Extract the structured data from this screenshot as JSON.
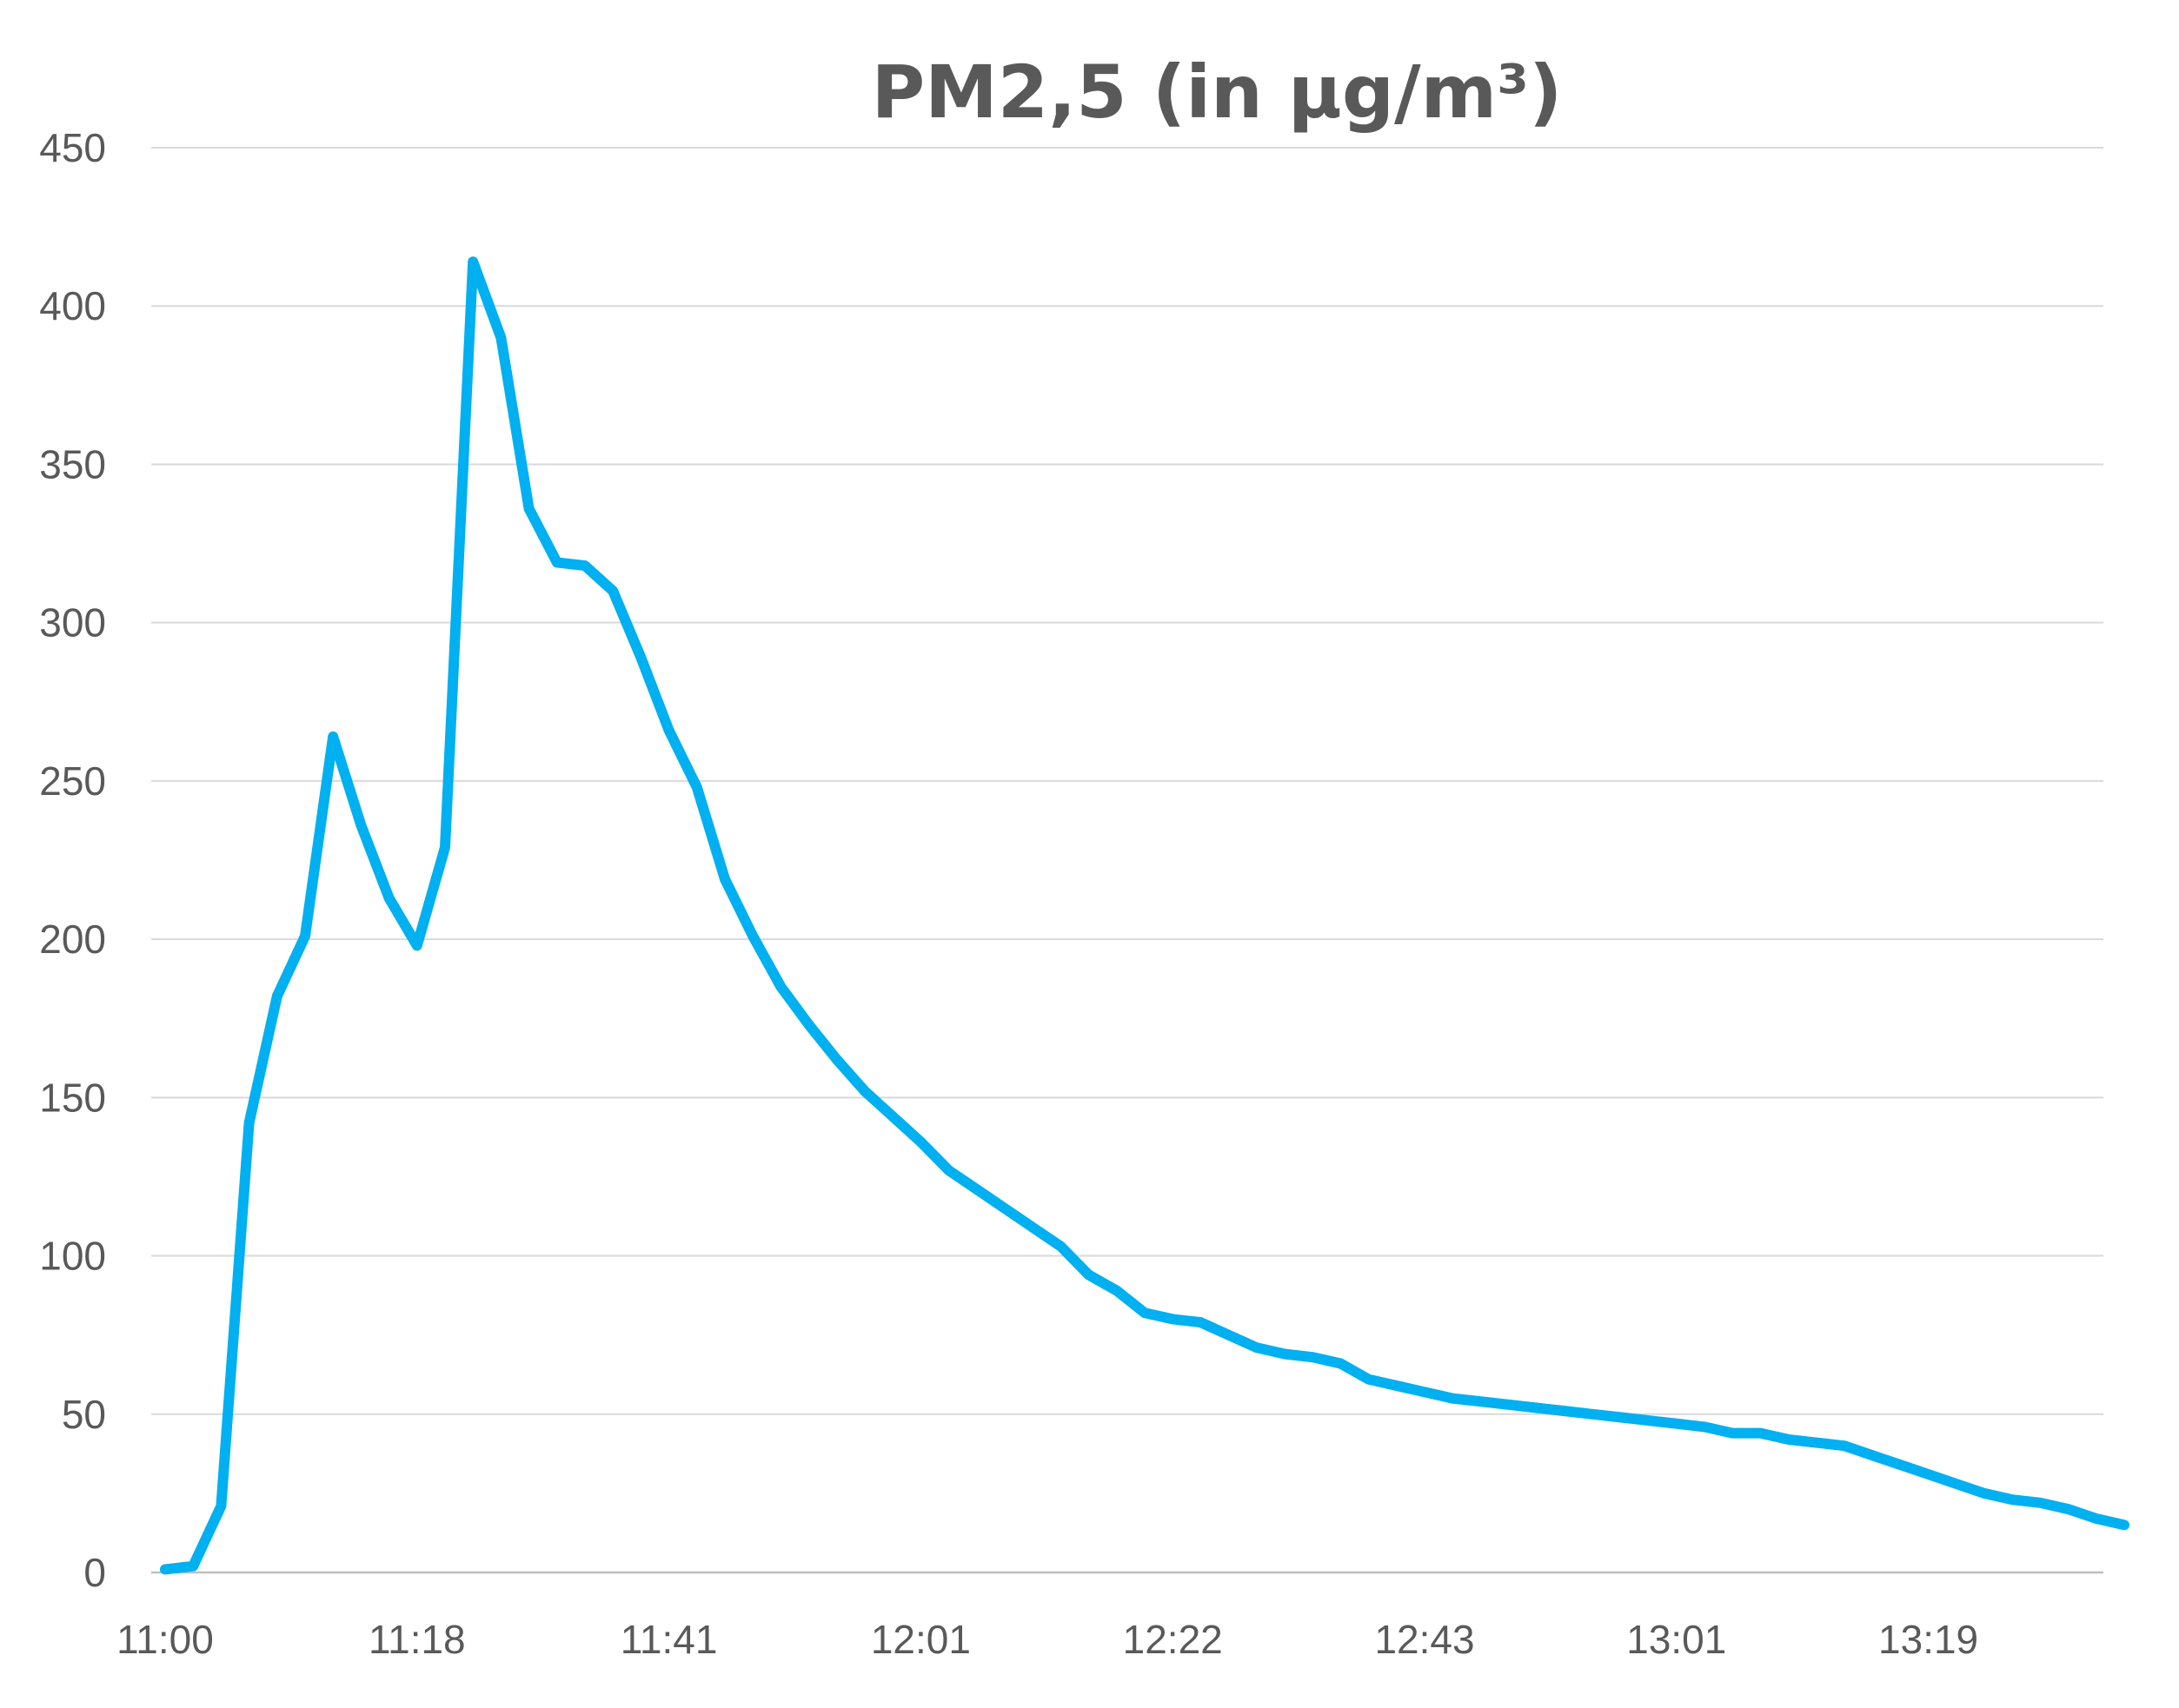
{
  "chart_data": {
    "type": "line",
    "title": "PM2,5 (in µg/m³)",
    "xlabel": "",
    "ylabel": "",
    "ylim": [
      0,
      450
    ],
    "yticks": [
      0,
      50,
      100,
      150,
      200,
      250,
      300,
      350,
      400,
      450
    ],
    "grid": true,
    "legend": "none",
    "x_tick_labels": [
      {
        "index": 0,
        "label": "11:00"
      },
      {
        "index": 9,
        "label": "11:18"
      },
      {
        "index": 18,
        "label": "11:41"
      },
      {
        "index": 27,
        "label": "12:01"
      },
      {
        "index": 36,
        "label": "12:22"
      },
      {
        "index": 45,
        "label": "12:43"
      },
      {
        "index": 54,
        "label": "13:01"
      },
      {
        "index": 63,
        "label": "13:19"
      }
    ],
    "series": [
      {
        "color": "#00b0f0",
        "values": [
          1,
          2,
          21,
          142,
          182,
          201,
          264,
          236,
          213,
          198,
          229,
          414,
          390,
          336,
          319,
          318,
          310,
          289,
          266,
          248,
          219,
          201,
          185,
          173,
          162,
          152,
          144,
          136,
          127,
          121,
          115,
          109,
          103,
          94,
          89,
          82,
          80,
          79,
          75,
          71,
          69,
          68,
          66,
          61,
          59,
          57,
          55,
          54,
          53,
          52,
          51,
          50,
          49,
          48,
          47,
          46,
          44,
          44,
          42,
          41,
          40,
          37,
          34,
          31,
          28,
          25,
          23,
          22,
          20,
          17,
          15
        ]
      }
    ]
  }
}
